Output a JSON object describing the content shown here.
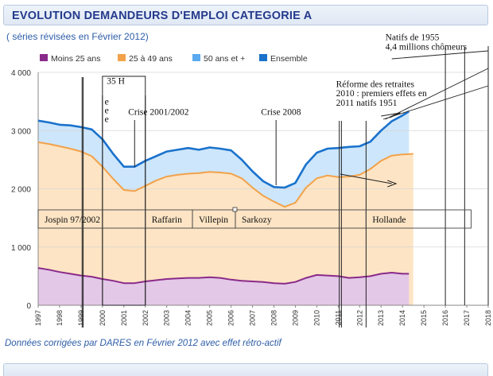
{
  "header": {
    "title": "EVOLUTION DEMANDEURS D'EMPLOI CATEGORIE A"
  },
  "subtitle": "( séries révisées en Février 2012)",
  "footnote": "Données corrigées par DARES en Février 2012 avec effet rétro-actif",
  "colors": {
    "moins25": "#8a2a8a",
    "age25_49": "#f2a24a",
    "plus50": "#5aaaf0",
    "ensemble": "#1a72cc",
    "fill_moins25": "#e3c8e8",
    "fill_25_49": "#fde4c4",
    "fill_plus50": "#cde6fb"
  },
  "chart_data": {
    "type": "area",
    "title": "EVOLUTION DEMANDEURS D'EMPLOI CATEGORIE A",
    "xlabel": "",
    "ylabel": "",
    "xlim": [
      1997,
      2018
    ],
    "ylim": [
      0,
      4000
    ],
    "x_ticks": [
      "1997",
      "1998",
      "1999",
      "2000",
      "2001",
      "2002",
      "2003",
      "2004",
      "2005",
      "2006",
      "2007",
      "2008",
      "2009",
      "2010",
      "2011",
      "2012",
      "2013",
      "2014",
      "2015",
      "2016",
      "2017",
      "2018"
    ],
    "y_ticks": [
      0,
      1000,
      2000,
      3000,
      4000
    ],
    "y_tick_labels": [
      "0",
      "1 000",
      "2 000",
      "3 000",
      "4 000"
    ],
    "legend": [
      "Moins 25 ans",
      "25 à 49 ans",
      "50 ans et +",
      "Ensemble"
    ],
    "legend_position": "top",
    "series": [
      {
        "name": "Ensemble",
        "stack": "top",
        "x": [
          1997,
          1997.5,
          1998,
          1998.5,
          1999,
          1999.5,
          2000,
          2000.5,
          2001,
          2001.5,
          2002,
          2002.5,
          2003,
          2003.5,
          2004,
          2004.5,
          2005,
          2005.5,
          2006,
          2006.5,
          2007,
          2007.5,
          2008,
          2008.5,
          2009,
          2009.5,
          2010,
          2010.5,
          2011,
          2011.5,
          2012,
          2012.5,
          2013,
          2013.5,
          2014,
          2014.3
        ],
        "values": [
          3170,
          3140,
          3100,
          3090,
          3060,
          3020,
          2850,
          2600,
          2380,
          2380,
          2480,
          2560,
          2640,
          2670,
          2700,
          2670,
          2710,
          2690,
          2660,
          2500,
          2300,
          2130,
          2030,
          2020,
          2100,
          2420,
          2620,
          2690,
          2700,
          2720,
          2730,
          2810,
          3000,
          3160,
          3260,
          3330
        ]
      },
      {
        "name": "25 à 49 ans",
        "stack": "middle",
        "x": [
          1997,
          1997.5,
          1998,
          1998.5,
          1999,
          1999.5,
          2000,
          2000.5,
          2001,
          2001.5,
          2002,
          2002.5,
          2003,
          2003.5,
          2004,
          2004.5,
          2005,
          2005.5,
          2006,
          2006.5,
          2007,
          2007.5,
          2008,
          2008.5,
          2009,
          2009.5,
          2010,
          2010.5,
          2011,
          2011.5,
          2012,
          2012.5,
          2013,
          2013.5,
          2014,
          2014.5
        ],
        "values": [
          2800,
          2770,
          2730,
          2690,
          2640,
          2560,
          2380,
          2170,
          1980,
          1960,
          2050,
          2140,
          2210,
          2240,
          2260,
          2270,
          2290,
          2280,
          2260,
          2180,
          2020,
          1880,
          1780,
          1690,
          1760,
          2020,
          2180,
          2230,
          2200,
          2210,
          2240,
          2340,
          2480,
          2570,
          2590,
          2600
        ]
      },
      {
        "name": "Moins 25 ans",
        "stack": "bottom",
        "x": [
          1997,
          1997.5,
          1998,
          1998.5,
          1999,
          1999.5,
          2000,
          2000.5,
          2001,
          2001.5,
          2002,
          2002.5,
          2003,
          2003.5,
          2004,
          2004.5,
          2005,
          2005.5,
          2006,
          2006.5,
          2007,
          2007.5,
          2008,
          2008.5,
          2009,
          2009.5,
          2010,
          2010.5,
          2011,
          2011.5,
          2012,
          2012.5,
          2013,
          2013.5,
          2014,
          2014.3
        ],
        "values": [
          640,
          610,
          570,
          540,
          510,
          490,
          450,
          420,
          380,
          380,
          410,
          430,
          450,
          460,
          470,
          470,
          480,
          470,
          440,
          420,
          410,
          400,
          380,
          370,
          400,
          470,
          520,
          510,
          500,
          470,
          480,
          500,
          540,
          560,
          540,
          540
        ]
      }
    ],
    "annotations": [
      {
        "text": "35 H",
        "x": 2000.2,
        "y": 3800
      },
      {
        "text": "Crise 2001/2002",
        "x": 2001.2,
        "y": 3270
      },
      {
        "text": "Crise 2008",
        "x": 2007.4,
        "y": 3270
      },
      {
        "text": "Réforme des retraites",
        "x": 2010.9,
        "y": 3750
      },
      {
        "text": "2010 : premiers effets en",
        "x": 2010.9,
        "y": 3590
      },
      {
        "text": "2011 natifs 1951",
        "x": 2010.9,
        "y": 3430
      },
      {
        "text": "Natifs de 1955",
        "x": 2013.2,
        "y": 4550
      },
      {
        "text": "4,4 millions chômeurs",
        "x": 2013.2,
        "y": 4390
      },
      {
        "text": "e",
        "x": 2000.1,
        "y": 3450
      },
      {
        "text": "e",
        "x": 2000.1,
        "y": 3300
      },
      {
        "text": "e",
        "x": 2000.1,
        "y": 3150
      }
    ],
    "periods": [
      {
        "text": "Jospin 97/2002",
        "x0": 1997,
        "x1": 2002
      },
      {
        "text": "Raffarin",
        "x0": 2002,
        "x1": 2004.2
      },
      {
        "text": "Villepin",
        "x0": 2004.2,
        "x1": 2006.2
      },
      {
        "text": "Sarkozy",
        "x0": 2006.2,
        "x1": 2012.3
      },
      {
        "text": "Hollande",
        "x0": 2012.3,
        "x1": 2017.2
      }
    ]
  }
}
